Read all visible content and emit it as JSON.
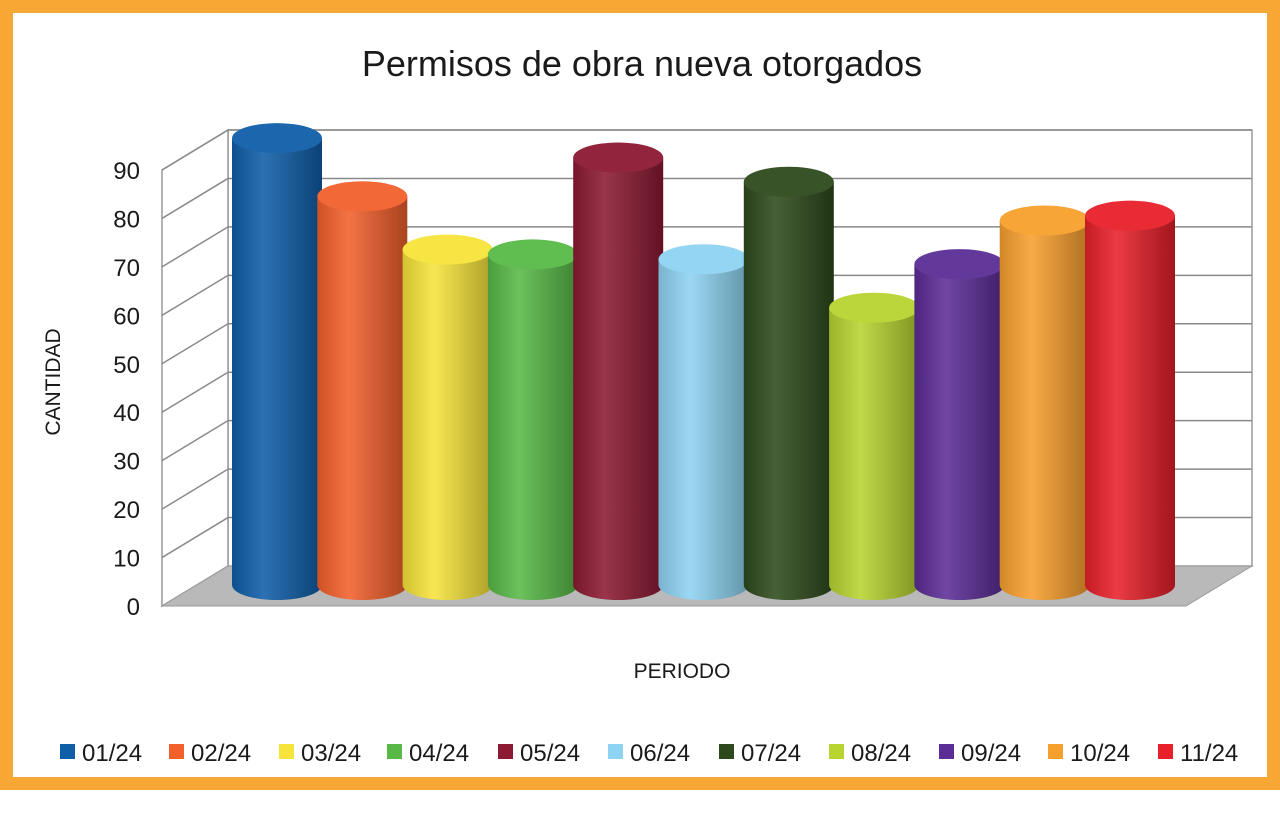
{
  "chart_data": {
    "type": "bar",
    "title": "Permisos de obra nueva otorgados",
    "xlabel": "PERIODO",
    "ylabel": "CANTIDAD",
    "ylim": [
      0,
      90
    ],
    "yticks": [
      0,
      10,
      20,
      30,
      40,
      50,
      60,
      70,
      80,
      90
    ],
    "grid": true,
    "legend": "bottom",
    "categories": [
      "01/24",
      "02/24",
      "03/24",
      "04/24",
      "05/24",
      "06/24",
      "07/24",
      "08/24",
      "09/24",
      "10/24",
      "11/24"
    ],
    "values": [
      91,
      79,
      68,
      67,
      87,
      66,
      82,
      56,
      65,
      74,
      75
    ],
    "colors": [
      "#0f5ea8",
      "#f2602c",
      "#f7e43a",
      "#58b947",
      "#8c1a33",
      "#8ed3f2",
      "#2e4a1c",
      "#b7d430",
      "#5b2d96",
      "#f8a02e",
      "#e8202a"
    ]
  }
}
